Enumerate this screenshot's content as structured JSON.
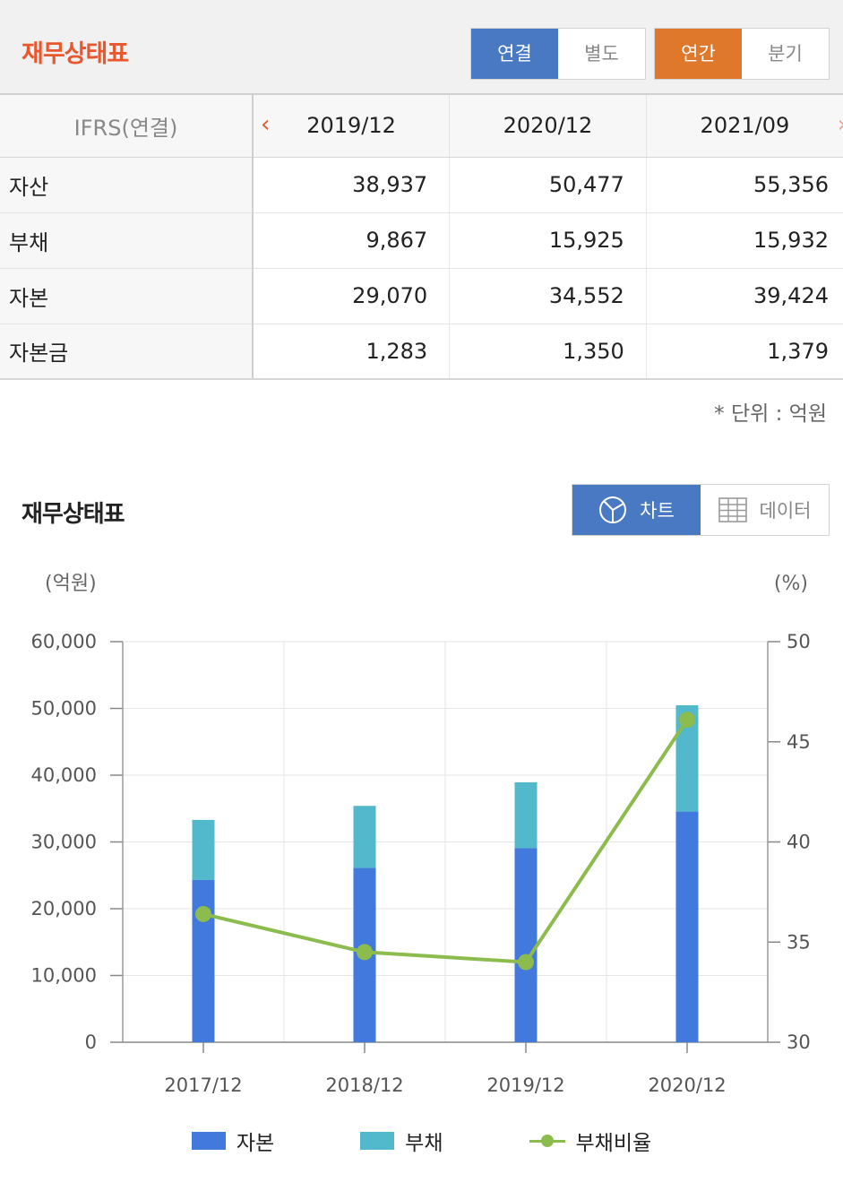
{
  "header": {
    "title": "재무상태표",
    "scope_options": [
      "연결",
      "별도"
    ],
    "scope_selected": 0,
    "period_options": [
      "연간",
      "분기"
    ],
    "period_selected": 0
  },
  "table": {
    "corner": "IFRS(연결)",
    "columns": [
      "2019/12",
      "2020/12",
      "2021/09"
    ],
    "rows": [
      {
        "label": "자산",
        "values": [
          "38,937",
          "50,477",
          "55,356"
        ]
      },
      {
        "label": "부채",
        "values": [
          "9,867",
          "15,925",
          "15,932"
        ]
      },
      {
        "label": "자본",
        "values": [
          "29,070",
          "34,552",
          "39,424"
        ]
      },
      {
        "label": "자본금",
        "values": [
          "1,283",
          "1,350",
          "1,379"
        ]
      }
    ],
    "unit_note": "* 단위 : 억원"
  },
  "chart_section": {
    "title": "재무상태표",
    "view_options": [
      "차트",
      "데이터"
    ],
    "view_selected": 0
  },
  "chart_data": {
    "type": "bar",
    "stacked": true,
    "categories": [
      "2017/12",
      "2018/12",
      "2019/12",
      "2020/12"
    ],
    "series": [
      {
        "name": "자본",
        "type": "bar",
        "axis": "left",
        "color": "#4279dc",
        "values": [
          24300,
          26100,
          29070,
          34552
        ]
      },
      {
        "name": "부채",
        "type": "bar",
        "axis": "left",
        "color": "#52b8cc",
        "values": [
          9000,
          9300,
          9867,
          15925
        ]
      },
      {
        "name": "부채비율",
        "type": "line",
        "axis": "right",
        "color": "#8cbb4e",
        "values": [
          36.4,
          34.5,
          34.0,
          46.1
        ]
      }
    ],
    "y_left": {
      "unit": "(억원)",
      "min": 0,
      "max": 60000,
      "ticks": [
        "0",
        "10,000",
        "20,000",
        "30,000",
        "40,000",
        "50,000",
        "60,000"
      ]
    },
    "y_right": {
      "unit": "(%)",
      "min": 30,
      "max": 50,
      "ticks": [
        "30",
        "35",
        "40",
        "45",
        "50"
      ]
    },
    "grid": true,
    "legend_position": "bottom"
  }
}
